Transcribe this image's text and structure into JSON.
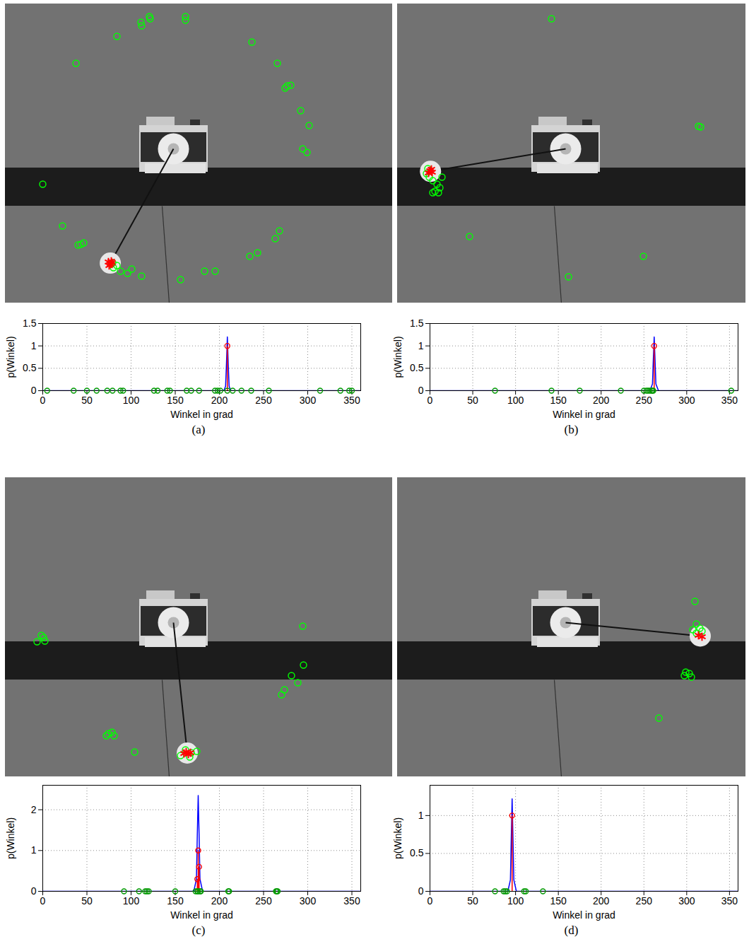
{
  "chart_data": [
    {
      "label": "(a)",
      "image": {
        "type": "scatter",
        "tick_labels": false,
        "xlim": [
          0,
          548
        ],
        "ylim": [
          423,
          0
        ],
        "series": [
          {
            "marker": "circle",
            "color": "#00ff00",
            "x": [
              53,
              100,
              158,
              192,
              193,
              204,
              205,
              255,
              255,
              349,
              385,
              396,
              399,
              404,
              418,
              430,
              421,
              427,
              388,
              382,
              357,
              346,
              297,
              282,
              248,
              81,
              103,
              107,
              111,
              193,
              179,
              173,
              163,
              158,
              153,
              150,
              152
            ],
            "values": [
              255,
              84,
              46,
              26,
              31,
              18,
              21,
              18,
              23,
              54,
              84,
              119,
              116,
              115,
              151,
              172,
              205,
              210,
              321,
              332,
              352,
              357,
              378,
              378,
              390,
              314,
              341,
              340,
              338,
              385,
              375,
              381,
              378,
              370,
              373,
              368,
              366
            ]
          },
          {
            "marker": "star",
            "color": "#ff0000",
            "x": [
              146,
              149,
              151,
              147,
              150
            ],
            "values": [
              365,
              368,
              366,
              370,
              364
            ]
          }
        ]
      },
      "chart": {
        "type": "line",
        "x_label": "Winkel in grad",
        "y_label": "p(Winkel)",
        "grid": true,
        "xlim": [
          0,
          360
        ],
        "xticks": [
          0,
          50,
          100,
          150,
          200,
          250,
          300,
          350
        ],
        "ylim": [
          0,
          1.5
        ],
        "yticks": [
          0,
          0.5,
          1,
          1.5
        ],
        "series": [
          {
            "color": "#0000ff",
            "x": [
              0,
              205,
              207,
              208,
              209,
              210,
              211,
              213,
              360
            ],
            "values": [
              0,
              0,
              0.1,
              0.6,
              1.2,
              0.6,
              0.1,
              0,
              0
            ]
          },
          {
            "type": "stem",
            "marker": "circle",
            "color": "#ff0000",
            "x": [
              209
            ],
            "values": [
              1
            ]
          },
          {
            "type": "scatter",
            "marker": "circle",
            "color": "#009900",
            "x": [
              5,
              35,
              50,
              61,
              73,
              79,
              88,
              91,
              126,
              130,
              141,
              144,
              163,
              168,
              177,
              195,
              198,
              201,
              209,
              215,
              225,
              236,
              256,
              314,
              337,
              347,
              350
            ],
            "values": [
              0,
              0,
              0,
              0,
              0,
              0,
              0,
              0,
              0,
              0,
              0,
              0,
              0,
              0,
              0,
              0,
              0,
              0,
              0,
              0,
              0,
              0,
              0,
              0,
              0,
              0,
              0
            ]
          }
        ]
      }
    },
    {
      "label": "(b)",
      "image": {
        "type": "scatter",
        "tick_labels": false,
        "xlim": [
          0,
          493
        ],
        "ylim": [
          423,
          0
        ],
        "series": [
          {
            "marker": "circle",
            "color": "#00ff00",
            "x": [
              218,
              426,
              429,
              102,
              348,
              242,
              41,
              45,
              50,
              56,
              60,
              53,
              50,
              58,
              43,
              63
            ],
            "values": [
              21,
              173,
              174,
              329,
              357,
              386,
              240,
              245,
              250,
              255,
              260,
              265,
              267,
              267,
              233,
              245
            ]
          },
          {
            "marker": "star",
            "color": "#ff0000",
            "x": [
              46,
              49,
              44,
              48
            ],
            "values": [
              236,
              238,
              239,
              234
            ]
          }
        ]
      },
      "chart": {
        "type": "line",
        "x_label": "Winkel in grad",
        "y_label": "p(Winkel)",
        "grid": true,
        "xlim": [
          0,
          360
        ],
        "xticks": [
          0,
          50,
          100,
          150,
          200,
          250,
          300,
          350
        ],
        "ylim": [
          0,
          1.5
        ],
        "yticks": [
          0,
          0.5,
          1,
          1.5
        ],
        "series": [
          {
            "color": "#0000ff",
            "x": [
              0,
              257,
              260,
              261,
              262,
              263,
              264,
              267,
              360
            ],
            "values": [
              0,
              0,
              0.15,
              0.7,
              1.2,
              0.7,
              0.15,
              0,
              0
            ]
          },
          {
            "type": "stem",
            "marker": "circle",
            "color": "#ff0000",
            "x": [
              262
            ],
            "values": [
              1
            ]
          },
          {
            "type": "scatter",
            "marker": "circle",
            "color": "#009900",
            "x": [
              76,
              142,
              175,
              223,
              250,
              253,
              255,
              257,
              259,
              260,
              261,
              352
            ],
            "values": [
              0,
              0,
              0,
              0,
              0,
              0,
              0,
              0,
              0,
              0,
              0,
              0
            ]
          }
        ]
      }
    },
    {
      "label": "(c)",
      "image": {
        "type": "scatter",
        "tick_labels": false,
        "xlim": [
          0,
          548
        ],
        "ylim": [
          423,
          0
        ],
        "series": [
          {
            "marker": "circle",
            "color": "#00ff00",
            "x": [
              45,
              51,
              56,
              54,
              421,
              422,
              405,
              414,
              395,
              391,
              143,
              146,
              151,
              154,
              183,
              248,
              255,
              263,
              271,
              261
            ],
            "values": [
              232,
              223,
              231,
              226,
              210,
              265,
              280,
              290,
              300,
              307,
              365,
              362,
              360,
              365,
              388,
              393,
              385,
              389,
              387,
              395
            ]
          },
          {
            "marker": "star",
            "color": "#ff0000",
            "x": [
              253,
              256,
              259,
              262
            ],
            "values": [
              390,
              388,
              391,
              389
            ]
          }
        ]
      },
      "chart": {
        "type": "line",
        "x_label": "Winkel in grad",
        "y_label": "p(Winkel)",
        "grid": true,
        "xlim": [
          0,
          360
        ],
        "xticks": [
          0,
          50,
          100,
          150,
          200,
          250,
          300,
          350
        ],
        "ylim": [
          0,
          2.6
        ],
        "yticks": [
          0,
          1,
          2
        ],
        "series": [
          {
            "color": "#0000ff",
            "x": [
              0,
              171,
              174,
              175,
              176,
              177,
              178,
              181,
              360
            ],
            "values": [
              0,
              0,
              0.3,
              1.4,
              2.35,
              1.4,
              0.3,
              0,
              0
            ]
          },
          {
            "type": "stem",
            "marker": "circle",
            "color": "#ff0000",
            "x": [
              175,
              176,
              177
            ],
            "values": [
              0.3,
              1,
              0.6
            ]
          },
          {
            "type": "scatter",
            "marker": "circle",
            "color": "#009900",
            "x": [
              92,
              109,
              116,
              118,
              120,
              150,
              173,
              175,
              176,
              178,
              179,
              210,
              211,
              264,
              265,
              266
            ],
            "values": [
              0,
              0,
              0,
              0,
              0,
              0,
              0,
              0,
              0,
              0,
              0,
              0,
              0,
              0,
              0,
              0
            ]
          }
        ]
      }
    },
    {
      "label": "(d)",
      "image": {
        "type": "scatter",
        "tick_labels": false,
        "xlim": [
          0,
          493
        ],
        "ylim": [
          423,
          0
        ],
        "series": [
          {
            "marker": "circle",
            "color": "#00ff00",
            "x": [
              421,
              423,
              428,
              423,
              431,
              418,
              408,
              413,
              406,
              416,
              370
            ],
            "values": [
              175,
              207,
              213,
              220,
              217,
              215,
              275,
              277,
              280,
              282,
              340
            ]
          },
          {
            "marker": "star",
            "color": "#ff0000",
            "x": [
              426,
              431
            ],
            "values": [
              223,
              225
            ]
          }
        ]
      },
      "chart": {
        "type": "line",
        "x_label": "Winkel in grad",
        "y_label": "p(Winkel)",
        "grid": true,
        "xlim": [
          0,
          360
        ],
        "xticks": [
          0,
          50,
          100,
          150,
          200,
          250,
          300,
          350
        ],
        "ylim": [
          0,
          1.4
        ],
        "yticks": [
          0,
          0.5,
          1
        ],
        "series": [
          {
            "color": "#0000ff",
            "x": [
              0,
              91,
              94,
              95,
              96,
              97,
              98,
              101,
              360
            ],
            "values": [
              0,
              0,
              0.15,
              0.7,
              1.22,
              0.7,
              0.15,
              0,
              0
            ]
          },
          {
            "type": "stem",
            "marker": "circle",
            "color": "#ff0000",
            "x": [
              96
            ],
            "values": [
              1
            ]
          },
          {
            "type": "scatter",
            "marker": "circle",
            "color": "#009900",
            "x": [
              76,
              86,
              88,
              90,
              110,
              112,
              132
            ],
            "values": [
              0,
              0,
              0,
              0,
              0,
              0,
              0
            ]
          }
        ]
      }
    }
  ]
}
